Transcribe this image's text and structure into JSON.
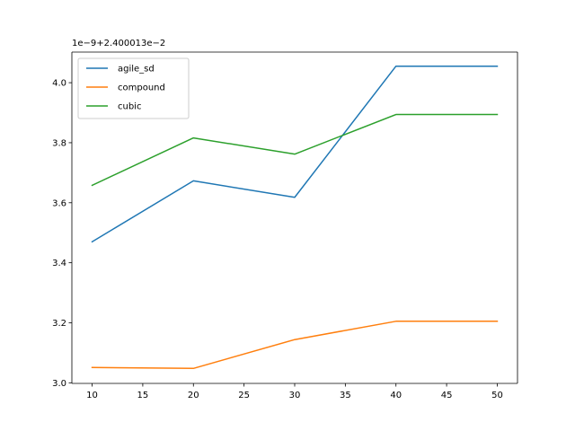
{
  "chart_data": {
    "type": "line",
    "title": "",
    "xlabel": "",
    "ylabel": "",
    "x": [
      10,
      20,
      30,
      40,
      50
    ],
    "xlim": [
      8,
      52
    ],
    "ylim": [
      2.998,
      4.102
    ],
    "grid": false,
    "legend_position": "top-left",
    "x_ticks": [
      {
        "value": 10,
        "label": "10"
      },
      {
        "value": 15,
        "label": "15"
      },
      {
        "value": 20,
        "label": "20"
      },
      {
        "value": 25,
        "label": "25"
      },
      {
        "value": 30,
        "label": "30"
      },
      {
        "value": 35,
        "label": "35"
      },
      {
        "value": 40,
        "label": "40"
      },
      {
        "value": 45,
        "label": "45"
      },
      {
        "value": 50,
        "label": "50"
      }
    ],
    "y_ticks": [
      {
        "value": 3.0,
        "label": "3.0"
      },
      {
        "value": 3.2,
        "label": "3.2"
      },
      {
        "value": 3.4,
        "label": "3.4"
      },
      {
        "value": 3.6,
        "label": "3.6"
      },
      {
        "value": 3.8,
        "label": "3.8"
      },
      {
        "value": 4.0,
        "label": "4.0"
      }
    ],
    "y_offset_text": "1e−9+2.400013e−2",
    "series": [
      {
        "name": "agile_sd",
        "color": "#1f77b4",
        "values": [
          3.47,
          3.673,
          3.618,
          4.055,
          4.055
        ]
      },
      {
        "name": "compound",
        "color": "#ff7f0e",
        "values": [
          3.051,
          3.048,
          3.144,
          3.205,
          3.205
        ]
      },
      {
        "name": "cubic",
        "color": "#2ca02c",
        "values": [
          3.658,
          3.816,
          3.762,
          3.894,
          3.894
        ]
      }
    ]
  }
}
